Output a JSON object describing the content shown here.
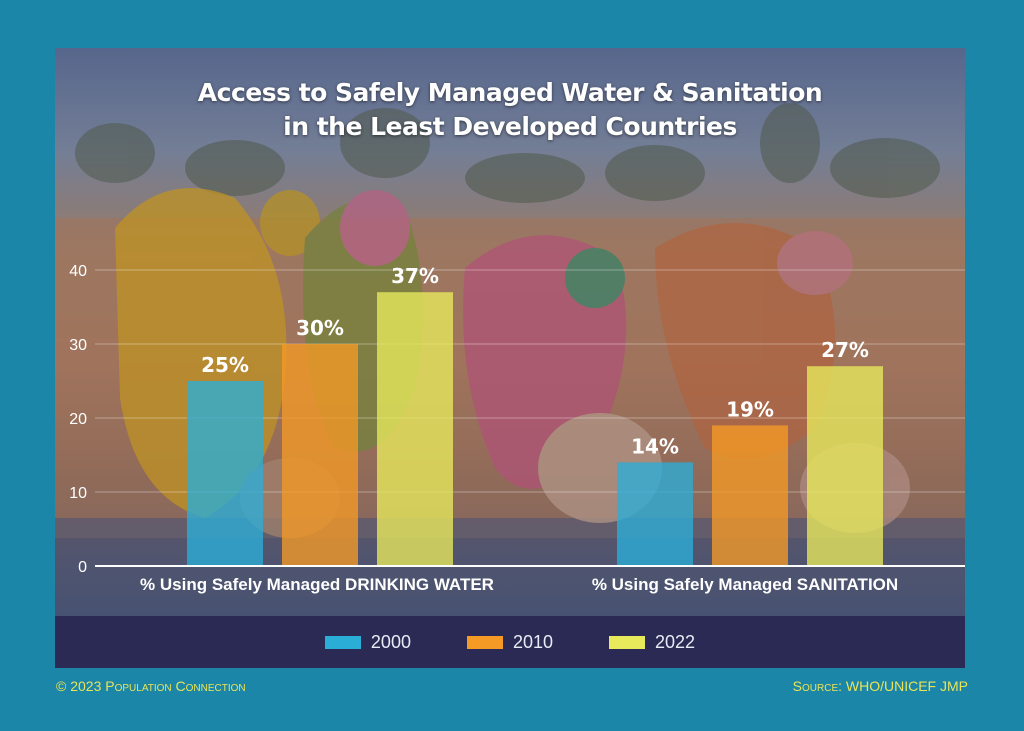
{
  "chart_data": {
    "type": "bar",
    "title_line1": "Access to Safely Managed Water & Sanitation",
    "title_line2": "in the Least Developed Countries",
    "categories": [
      "% Using Safely Managed DRINKING WATER",
      "% Using Safely Managed SANITATION"
    ],
    "series": [
      {
        "name": "2000",
        "values": [
          25,
          14
        ],
        "labels": [
          "25%",
          "14%"
        ],
        "color": "#2aaed8"
      },
      {
        "name": "2010",
        "values": [
          30,
          19
        ],
        "labels": [
          "30%",
          "19%"
        ],
        "color": "#f59a25"
      },
      {
        "name": "2022",
        "values": [
          37,
          27
        ],
        "labels": [
          "37%",
          "27%"
        ],
        "color": "#e8ea5c"
      }
    ],
    "yticks": [
      "0",
      "10",
      "20",
      "30",
      "40"
    ],
    "ylim": [
      0,
      40
    ],
    "grid": true,
    "legend_position": "bottom"
  },
  "footer": {
    "copyright_symbol": "©",
    "copyright_year": "2023",
    "copyright_org": "Population Connection",
    "source_label": "Source:",
    "source_value": "WHO/UNICEF JMP"
  },
  "colors": {
    "frame": "#1b86a8",
    "legend_bg": "#2b2a55",
    "footer_text": "#e9e357"
  }
}
